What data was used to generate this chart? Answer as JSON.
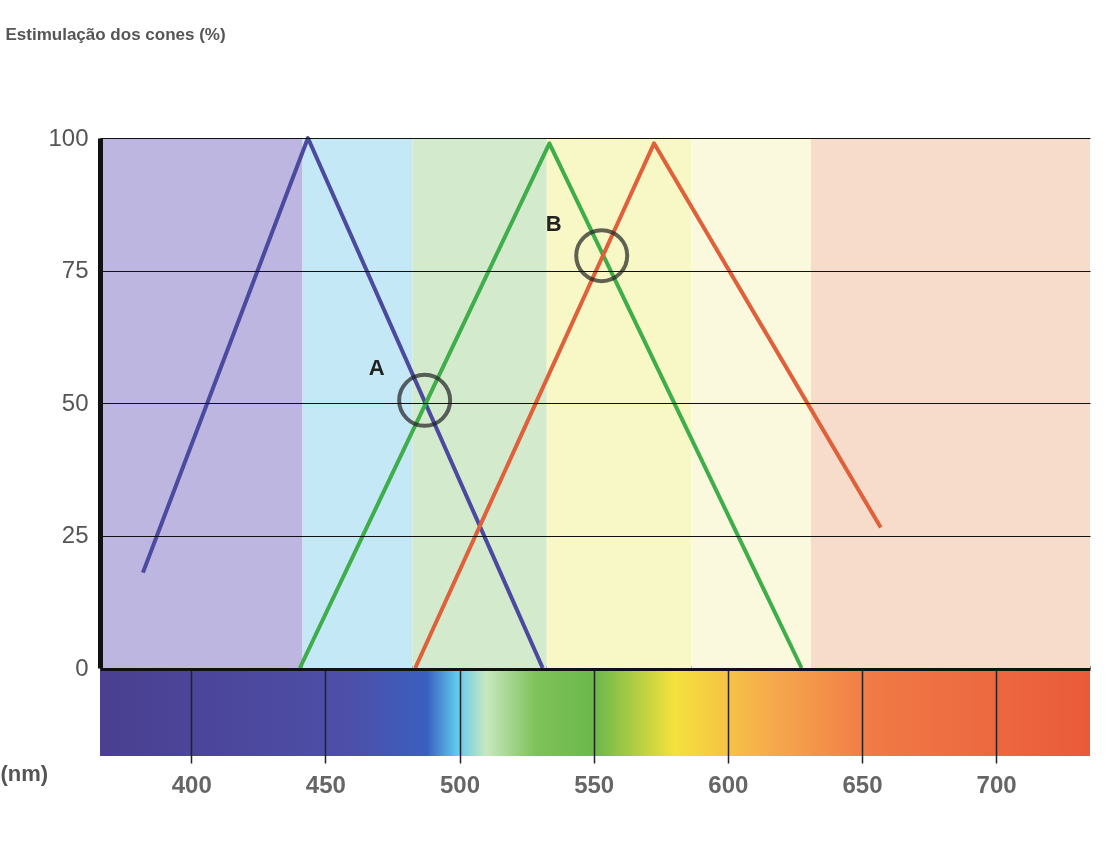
{
  "chart_data": {
    "type": "line",
    "ylabel": "Estimulação dos cones (%)",
    "xlabel": "(nm)",
    "xlim": [
      366,
      735
    ],
    "xticks": [
      400,
      450,
      500,
      550,
      600,
      650,
      700
    ],
    "ylim": [
      0,
      100
    ],
    "yticks": [
      0,
      25,
      50,
      75,
      100
    ],
    "grid": "y",
    "marker": "none",
    "line_style": "solid",
    "series": [
      {
        "color": "#4b4a9e",
        "x": [
          382,
          443.5,
          531
        ],
        "values": [
          18,
          100,
          0
        ]
      },
      {
        "color": "#3fae4a",
        "x": [
          440.5,
          533.5,
          627.5
        ],
        "values": [
          0,
          99,
          0
        ]
      },
      {
        "color": "#e0603a",
        "x": [
          483.5,
          572.5,
          657
        ],
        "values": [
          0,
          99,
          26.5
        ]
      }
    ],
    "bands": [
      {
        "axis": "x",
        "from": 366,
        "to": 441.5,
        "color": "#bcb6e0"
      },
      {
        "axis": "x",
        "from": 441.5,
        "to": 482.5,
        "color": "#c4e8f6"
      },
      {
        "axis": "x",
        "from": 482.5,
        "to": 532.5,
        "color": "#d3eacd"
      },
      {
        "axis": "x",
        "from": 532.5,
        "to": 586.5,
        "color": "#f8f8c6"
      },
      {
        "axis": "x",
        "from": 586.5,
        "to": 631,
        "color": "#fbf9dd"
      },
      {
        "axis": "x",
        "from": 631,
        "to": 735,
        "color": "#f8dccb"
      }
    ],
    "annotations": [
      {
        "text": "A",
        "x": 487,
        "y": 50.5
      },
      {
        "text": "B",
        "x": 553,
        "y": 77.8
      }
    ]
  }
}
